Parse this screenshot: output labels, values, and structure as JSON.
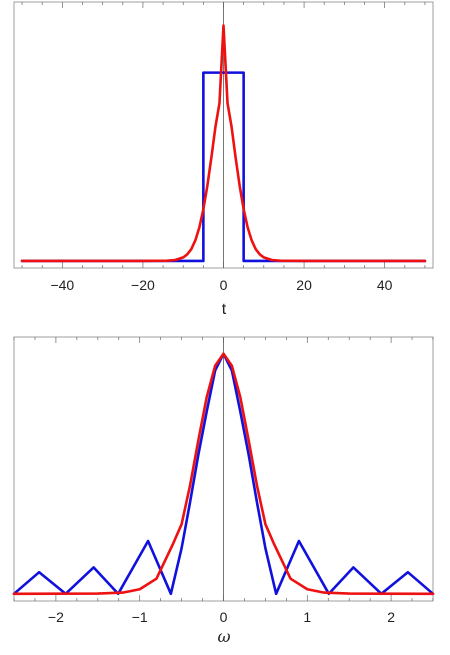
{
  "chart_data": [
    {
      "type": "line",
      "title": "",
      "xlabel": "t",
      "ylabel": "",
      "xlim": [
        -52,
        52
      ],
      "ylim": [
        -0.03,
        1.1
      ],
      "xticks": [
        "−40",
        "−20",
        "0",
        "20",
        "40"
      ],
      "xtick_values": [
        -40,
        -20,
        0,
        20,
        40
      ],
      "grid": false,
      "series": [
        {
          "color": "#1111dd",
          "x": [
            -50,
            -5,
            -5,
            5,
            5,
            50
          ],
          "y": [
            0,
            0,
            0.8,
            0.8,
            0,
            0
          ]
        },
        {
          "color": "#ee1111",
          "x": [
            -50,
            -20,
            -14,
            -12,
            -10,
            -9,
            -8,
            -7,
            -6,
            -5,
            -4,
            -3,
            -2,
            -1,
            0,
            1,
            2,
            3,
            4,
            5,
            6,
            7,
            8,
            9,
            10,
            12,
            14,
            20,
            50
          ],
          "y": [
            0,
            0,
            0.001,
            0.004,
            0.015,
            0.028,
            0.05,
            0.087,
            0.142,
            0.22,
            0.32,
            0.44,
            0.57,
            0.67,
            1.0,
            0.67,
            0.57,
            0.44,
            0.32,
            0.22,
            0.142,
            0.087,
            0.05,
            0.028,
            0.015,
            0.004,
            0.001,
            0,
            0
          ]
        }
      ]
    },
    {
      "type": "line",
      "title": "",
      "xlabel": "ω",
      "ylabel": "",
      "xlim": [
        -2.5,
        2.5
      ],
      "ylim": [
        -0.03,
        1.07
      ],
      "xticks": [
        "−2",
        "−1",
        "0",
        "1",
        "2"
      ],
      "xtick_values": [
        -2,
        -1,
        0,
        1,
        2
      ],
      "grid": false,
      "series": [
        {
          "color": "#1111dd",
          "x": [
            -2.5,
            -2.2,
            -1.884,
            -1.55,
            -1.257,
            -0.9,
            -0.628,
            -0.5,
            -0.4,
            -0.3,
            -0.2,
            -0.1,
            0,
            0.1,
            0.2,
            0.3,
            0.4,
            0.5,
            0.628,
            0.9,
            1.257,
            1.55,
            1.884,
            2.2,
            2.5
          ],
          "y": [
            0,
            0.09,
            0,
            0.11,
            0,
            0.22,
            0,
            0.19,
            0.38,
            0.58,
            0.76,
            0.93,
            1.0,
            0.93,
            0.76,
            0.58,
            0.38,
            0.19,
            0,
            0.22,
            0,
            0.11,
            0,
            0.09,
            0
          ]
        },
        {
          "color": "#ee1111",
          "x": [
            -2.5,
            -1.5,
            -1.2,
            -1.0,
            -0.8,
            -0.6,
            -0.5,
            -0.4,
            -0.3,
            -0.2,
            -0.1,
            0,
            0.1,
            0.2,
            0.3,
            0.4,
            0.5,
            0.6,
            0.8,
            1.0,
            1.2,
            1.5,
            2.5
          ],
          "y": [
            0,
            0.001,
            0.005,
            0.019,
            0.063,
            0.21,
            0.29,
            0.45,
            0.64,
            0.82,
            0.95,
            1.0,
            0.95,
            0.82,
            0.64,
            0.45,
            0.29,
            0.21,
            0.063,
            0.019,
            0.005,
            0.001,
            0
          ]
        }
      ]
    }
  ]
}
